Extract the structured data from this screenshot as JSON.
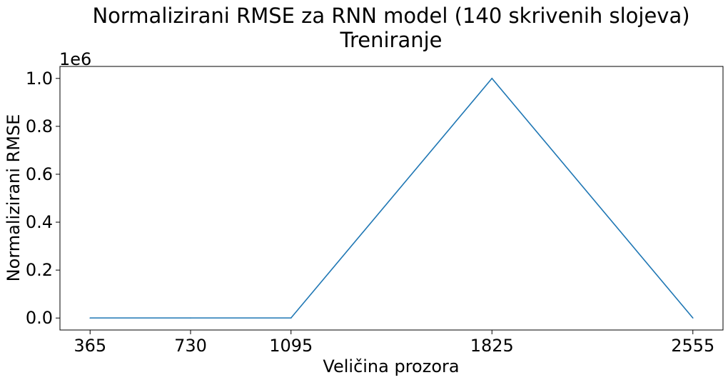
{
  "chart_data": {
    "type": "line",
    "title": "Normalizirani RMSE za RNN model (140 skrivenih slojeva)",
    "subtitle": "Treniranje",
    "xlabel": "Veličina prozora",
    "ylabel": "Normalizirani RMSE",
    "y_offset_label": "1e6",
    "x": [
      365,
      730,
      1095,
      1825,
      2555
    ],
    "x_tick_labels": [
      "365",
      "730",
      "1095",
      "1825",
      "2555"
    ],
    "y_ticks": [
      0.0,
      0.2,
      0.4,
      0.6,
      0.8,
      1.0
    ],
    "y_tick_labels": [
      "0.0",
      "0.2",
      "0.4",
      "0.6",
      "0.8",
      "1.0"
    ],
    "y_tick_scale": 1000000,
    "series": [
      {
        "values": [
          300,
          300,
          300,
          1000000,
          300
        ],
        "color": "#1f77b4"
      }
    ],
    "xlim": [
      255.5,
      2664.5
    ],
    "ylim": [
      -50000,
      1050000
    ],
    "grid": false,
    "legend": "none"
  }
}
